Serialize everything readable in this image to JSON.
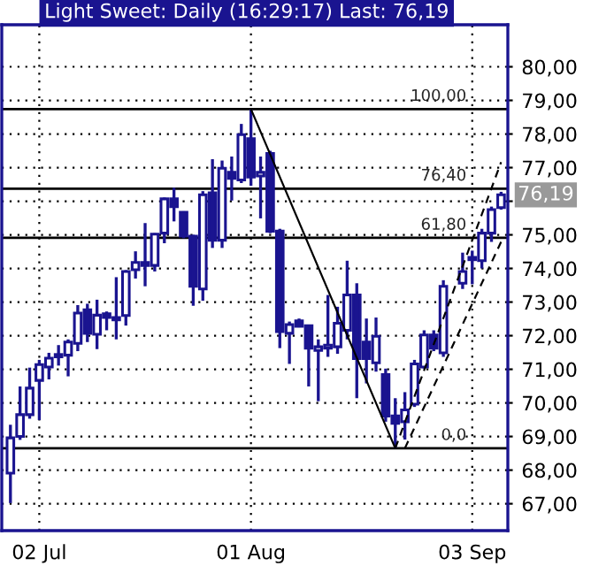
{
  "chart_data": {
    "type": "candlestick",
    "title": "Light Sweet: Daily (16:29:17) Last: 76,19",
    "color": "#1a1490",
    "categories": [
      null,
      null,
      null,
      "02 Jul",
      null,
      null,
      null,
      null,
      null,
      null,
      null,
      null,
      null,
      null,
      null,
      null,
      null,
      null,
      null,
      null,
      null,
      null,
      null,
      null,
      null,
      "01 Aug",
      null,
      null,
      null,
      null,
      null,
      null,
      null,
      null,
      null,
      null,
      null,
      null,
      null,
      null,
      null,
      null,
      null,
      null,
      null,
      null,
      null,
      null,
      "03 Sep",
      null,
      null,
      null
    ],
    "ohlc": [
      [
        67.91,
        69.35,
        67.02,
        68.96
      ],
      [
        69.0,
        70.49,
        68.9,
        69.65
      ],
      [
        69.65,
        71.05,
        69.53,
        70.44
      ],
      [
        70.67,
        71.28,
        69.49,
        71.14
      ],
      [
        71.07,
        71.49,
        70.7,
        71.33
      ],
      [
        71.44,
        71.72,
        71.11,
        71.37
      ],
      [
        71.42,
        71.89,
        70.79,
        71.81
      ],
      [
        71.77,
        72.91,
        71.54,
        72.67
      ],
      [
        72.77,
        72.95,
        71.81,
        72.07
      ],
      [
        72.04,
        73.07,
        71.6,
        72.61
      ],
      [
        72.65,
        72.72,
        72.16,
        72.54
      ],
      [
        72.54,
        73.74,
        71.89,
        72.47
      ],
      [
        72.6,
        73.95,
        72.3,
        73.91
      ],
      [
        73.96,
        74.51,
        73.7,
        74.18
      ],
      [
        74.18,
        75.35,
        73.47,
        74.09
      ],
      [
        74.09,
        75.05,
        73.91,
        75.02
      ],
      [
        75.05,
        76.11,
        74.75,
        76.07
      ],
      [
        76.07,
        76.4,
        75.4,
        75.84
      ],
      [
        75.67,
        75.7,
        74.9,
        74.96
      ],
      [
        74.96,
        75.0,
        72.89,
        73.47
      ],
      [
        73.39,
        76.3,
        73.04,
        76.19
      ],
      [
        76.25,
        77.25,
        74.61,
        74.84
      ],
      [
        74.84,
        77.21,
        74.61,
        76.98
      ],
      [
        76.86,
        77.33,
        76.02,
        76.68
      ],
      [
        76.63,
        78.3,
        76.54,
        77.98
      ],
      [
        77.86,
        78.74,
        76.46,
        76.72
      ],
      [
        76.75,
        77.33,
        75.49,
        76.86
      ],
      [
        77.42,
        77.5,
        75.05,
        75.11
      ],
      [
        75.11,
        75.18,
        71.63,
        72.12
      ],
      [
        72.07,
        72.42,
        71.16,
        72.33
      ],
      [
        72.44,
        72.51,
        72.25,
        72.28
      ],
      [
        72.3,
        72.3,
        70.49,
        71.63
      ],
      [
        71.56,
        71.89,
        70.05,
        71.67
      ],
      [
        71.63,
        73.21,
        71.37,
        71.72
      ],
      [
        71.67,
        72.86,
        71.46,
        72.37
      ],
      [
        72.16,
        74.23,
        71.89,
        73.21
      ],
      [
        73.21,
        73.56,
        70.14,
        71.32
      ],
      [
        71.81,
        72.51,
        70.58,
        71.32
      ],
      [
        71.19,
        72.54,
        70.93,
        71.98
      ],
      [
        70.84,
        71.02,
        69.44,
        69.61
      ],
      [
        69.61,
        70.14,
        68.65,
        69.39
      ],
      [
        69.44,
        70.32,
        68.91,
        69.79
      ],
      [
        69.96,
        71.28,
        69.88,
        71.16
      ],
      [
        71.07,
        72.16,
        71.02,
        72.02
      ],
      [
        72.02,
        72.16,
        71.54,
        71.63
      ],
      [
        71.49,
        73.65,
        71.37,
        73.47
      ],
      null,
      [
        73.56,
        74.47,
        73.39,
        73.91
      ],
      [
        74.26,
        74.53,
        73.53,
        74.33
      ],
      [
        74.23,
        75.18,
        74.0,
        75.05
      ],
      [
        75.05,
        75.84,
        74.79,
        75.75
      ],
      [
        75.81,
        76.28,
        75.75,
        76.19
      ]
    ],
    "series": [
      {
        "type": "line",
        "color": "#000000",
        "line_style": "solid",
        "values": [
          null,
          null,
          null,
          null,
          null,
          null,
          null,
          null,
          null,
          null,
          null,
          null,
          null,
          null,
          null,
          null,
          null,
          null,
          null,
          null,
          null,
          null,
          null,
          null,
          null,
          78.74,
          null,
          null,
          null,
          null,
          null,
          null,
          null,
          null,
          null,
          null,
          null,
          null,
          null,
          null,
          68.65,
          null,
          null,
          null,
          null,
          null,
          null,
          null,
          null,
          null,
          null,
          null
        ]
      },
      {
        "type": "line",
        "color": "#000000",
        "line_style": "dashed",
        "values": [
          null,
          null,
          null,
          null,
          null,
          null,
          null,
          null,
          null,
          null,
          null,
          null,
          null,
          null,
          null,
          null,
          null,
          null,
          null,
          null,
          null,
          null,
          null,
          null,
          null,
          null,
          null,
          null,
          null,
          null,
          null,
          null,
          null,
          null,
          null,
          null,
          null,
          null,
          null,
          null,
          68.65,
          null,
          null,
          null,
          null,
          null,
          null,
          null,
          null,
          null,
          null,
          77.16
        ]
      },
      {
        "type": "line",
        "color": "#000000",
        "line_style": "dashed",
        "values": [
          null,
          null,
          null,
          null,
          null,
          null,
          null,
          null,
          null,
          null,
          null,
          null,
          null,
          null,
          null,
          null,
          null,
          null,
          null,
          null,
          null,
          null,
          null,
          null,
          null,
          null,
          null,
          null,
          null,
          null,
          null,
          null,
          null,
          null,
          null,
          null,
          null,
          null,
          null,
          null,
          null,
          68.65,
          null,
          null,
          null,
          null,
          null,
          null,
          null,
          null,
          null,
          74.79
        ]
      }
    ],
    "ref_lines": [
      {
        "axis": "y",
        "value": 78.74,
        "color": "#000000"
      },
      {
        "axis": "y",
        "value": 76.37,
        "color": "#000000"
      },
      {
        "axis": "y",
        "value": 74.91,
        "color": "#000000"
      },
      {
        "axis": "y",
        "value": 68.65,
        "color": "#000000"
      }
    ],
    "annotations": [
      {
        "text": "100,00",
        "y": 78.74
      },
      {
        "text": "76,40",
        "y": 76.37
      },
      {
        "text": "61,80",
        "y": 74.91
      },
      {
        "text": "0,0",
        "y": 68.65
      },
      "76,19"
    ],
    "ylim": [
      66.2,
      81.25
    ],
    "yticks": [
      {
        "value": 67,
        "label": "67,00"
      },
      {
        "value": 68,
        "label": "68,00"
      },
      {
        "value": 69,
        "label": "69,00"
      },
      {
        "value": 70,
        "label": "70,00"
      },
      {
        "value": 71,
        "label": "71,00"
      },
      {
        "value": 72,
        "label": "72,00"
      },
      {
        "value": 73,
        "label": "73,00"
      },
      {
        "value": 74,
        "label": "74,00"
      },
      {
        "value": 75,
        "label": "75,00"
      },
      {
        "value": 76,
        "label": null
      },
      {
        "value": 77,
        "label": "77,00"
      },
      {
        "value": 78,
        "label": "78,00"
      },
      {
        "value": 79,
        "label": "79,00"
      },
      {
        "value": 80,
        "label": "80,00"
      }
    ],
    "grid": true
  }
}
